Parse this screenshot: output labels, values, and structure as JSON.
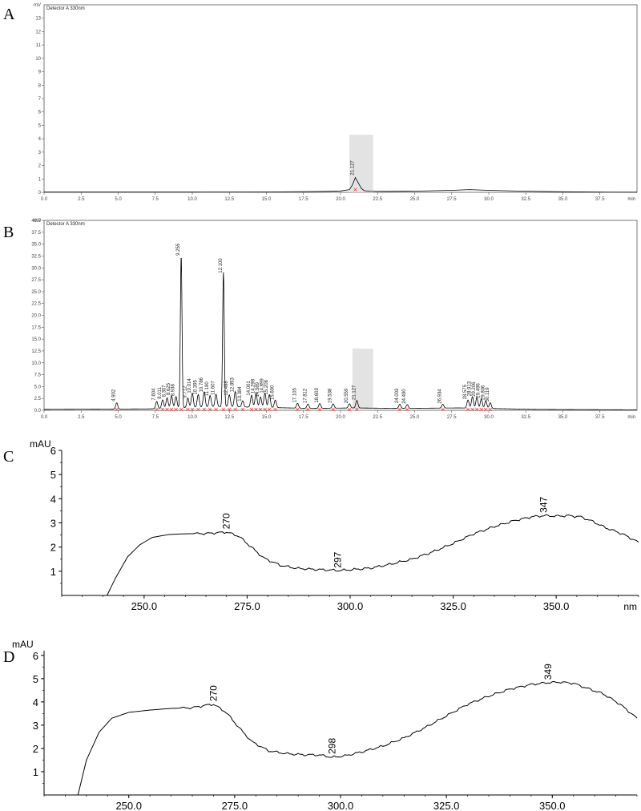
{
  "chart_data": [
    {
      "panel": "A",
      "type": "line",
      "detector_label": "Detector A 330nm",
      "ylabel": "mV",
      "xlabel": "min",
      "xlim": [
        0.0,
        40.0
      ],
      "ylim": [
        0,
        14
      ],
      "x_ticks": [
        "0.0",
        "2.5",
        "5.0",
        "7.5",
        "10.0",
        "12.5",
        "15.0",
        "17.5",
        "20.0",
        "22.5",
        "25.0",
        "27.5",
        "30.0",
        "32.5",
        "35.0",
        "37.5"
      ],
      "y_ticks": [
        "0",
        "1",
        "2",
        "3",
        "4",
        "5",
        "6",
        "7",
        "8",
        "9",
        "10",
        "11",
        "12",
        "13"
      ],
      "highlight": {
        "x_range": [
          20.6,
          22.2
        ],
        "y_max": 4.3
      },
      "x": [
        0,
        5,
        10,
        15,
        17.5,
        19,
        20,
        20.6,
        20.8,
        21.0,
        21.2,
        21.4,
        21.6,
        22.0,
        23,
        25,
        27.5,
        28.7,
        30,
        32.5,
        35,
        37.5,
        40
      ],
      "y": [
        0.02,
        0.02,
        0.02,
        0.03,
        0.05,
        0.07,
        0.1,
        0.2,
        0.55,
        1.1,
        0.7,
        0.3,
        0.12,
        0.08,
        0.07,
        0.09,
        0.15,
        0.2,
        0.15,
        0.08,
        0.04,
        0.02,
        0.01
      ],
      "peaks": [
        {
          "x": 21.0,
          "label": "21.127"
        }
      ]
    },
    {
      "panel": "B",
      "type": "line",
      "detector_label": "Detector A 330nm",
      "ylabel": "mV",
      "xlabel": "min",
      "xlim": [
        0.0,
        40.0
      ],
      "ylim": [
        0,
        40
      ],
      "x_ticks": [
        "0.0",
        "2.5",
        "5.0",
        "7.5",
        "10.0",
        "12.5",
        "15.0",
        "17.5",
        "20.0",
        "22.5",
        "25.0",
        "27.5",
        "30.0",
        "32.5",
        "35.0",
        "37.5"
      ],
      "y_ticks": [
        "0.0",
        "2.5",
        "5.0",
        "7.5",
        "10.0",
        "12.5",
        "15.0",
        "17.5",
        "20.0",
        "22.5",
        "25.0",
        "27.5",
        "30.0",
        "32.5",
        "35.0",
        "37.5",
        "40.0"
      ],
      "highlight": {
        "x_range": [
          20.8,
          22.2
        ],
        "y_max": 13.0
      },
      "baseline": [
        [
          0,
          0.2
        ],
        [
          4,
          0.25
        ],
        [
          7,
          0.3
        ],
        [
          9,
          0.5
        ],
        [
          12,
          0.8
        ],
        [
          15,
          0.6
        ],
        [
          18,
          0.4
        ],
        [
          21,
          0.5
        ],
        [
          24,
          0.4
        ],
        [
          28,
          0.5
        ],
        [
          30,
          0.4
        ],
        [
          33,
          0.2
        ],
        [
          36,
          0.15
        ],
        [
          40,
          0.1
        ]
      ],
      "peaks": [
        {
          "x": 4.9,
          "h": 1.3,
          "label": "4.902"
        },
        {
          "x": 7.6,
          "h": 1.5,
          "label": "7.604"
        },
        {
          "x": 8.0,
          "h": 1.8,
          "label": "8.011"
        },
        {
          "x": 8.3,
          "h": 2.2,
          "label": "8.307"
        },
        {
          "x": 8.6,
          "h": 2.6,
          "label": "8.625"
        },
        {
          "x": 8.9,
          "h": 2.4,
          "label": "8.938"
        },
        {
          "x": 9.25,
          "h": 32.0,
          "label": "9.255"
        },
        {
          "x": 9.7,
          "h": 2.0,
          "label": "9.712"
        },
        {
          "x": 10.0,
          "h": 3.0,
          "label": "10.014"
        },
        {
          "x": 10.4,
          "h": 2.7,
          "label": "10.395"
        },
        {
          "x": 10.8,
          "h": 3.2,
          "label": "10.786"
        },
        {
          "x": 11.2,
          "h": 2.4,
          "label": "11.180"
        },
        {
          "x": 11.6,
          "h": 2.6,
          "label": "11.607"
        },
        {
          "x": 12.1,
          "h": 28.3,
          "label": "12.100"
        },
        {
          "x": 12.5,
          "h": 2.5,
          "label": "12.498"
        },
        {
          "x": 12.9,
          "h": 3.2,
          "label": "12.893"
        },
        {
          "x": 13.4,
          "h": 1.3,
          "label": "13.384"
        },
        {
          "x": 14.0,
          "h": 2.5,
          "label": "14.001"
        },
        {
          "x": 14.3,
          "h": 2.9,
          "label": "14.298"
        },
        {
          "x": 14.6,
          "h": 2.2,
          "label": "14.589"
        },
        {
          "x": 14.9,
          "h": 3.0,
          "label": "14.899"
        },
        {
          "x": 15.2,
          "h": 2.7,
          "label": "15.208"
        },
        {
          "x": 15.6,
          "h": 1.6,
          "label": "15.600"
        },
        {
          "x": 17.1,
          "h": 1.0,
          "label": "17.105"
        },
        {
          "x": 17.8,
          "h": 0.9,
          "label": "17.812"
        },
        {
          "x": 18.6,
          "h": 1.0,
          "label": "18.603"
        },
        {
          "x": 19.5,
          "h": 0.9,
          "label": "19.538"
        },
        {
          "x": 20.6,
          "h": 0.9,
          "label": "20.559"
        },
        {
          "x": 21.1,
          "h": 1.6,
          "label": "21.127"
        },
        {
          "x": 24.0,
          "h": 0.9,
          "label": "24.003"
        },
        {
          "x": 24.5,
          "h": 0.8,
          "label": "24.490"
        },
        {
          "x": 26.9,
          "h": 0.8,
          "label": "26.934"
        },
        {
          "x": 28.6,
          "h": 1.7,
          "label": "28.575"
        },
        {
          "x": 28.9,
          "h": 2.4,
          "label": "28.913"
        },
        {
          "x": 29.2,
          "h": 2.3,
          "label": "29.206"
        },
        {
          "x": 29.5,
          "h": 2.0,
          "label": "29.496"
        },
        {
          "x": 29.8,
          "h": 1.6,
          "label": "29.806"
        },
        {
          "x": 30.1,
          "h": 1.2,
          "label": "30.119"
        }
      ]
    },
    {
      "panel": "C",
      "type": "line",
      "ylabel": "mAU",
      "xlabel": "nm",
      "xlim": [
        230.0,
        370.0
      ],
      "ylim": [
        0,
        6
      ],
      "x_ticks": [
        "250.0",
        "275.0",
        "300.0",
        "325.0",
        "350.0"
      ],
      "y_ticks": [
        "1",
        "2",
        "3",
        "4",
        "5",
        "6"
      ],
      "x": [
        241,
        243,
        246,
        249,
        252,
        256,
        260,
        265,
        270,
        273,
        276,
        279,
        283,
        287,
        291,
        295,
        297,
        300,
        305,
        310,
        315,
        320,
        325,
        330,
        335,
        340,
        344,
        347,
        350,
        353,
        356,
        359,
        362,
        366,
        370
      ],
      "y": [
        0.0,
        0.7,
        1.6,
        2.1,
        2.4,
        2.52,
        2.55,
        2.56,
        2.62,
        2.45,
        2.0,
        1.55,
        1.25,
        1.12,
        1.08,
        1.05,
        1.03,
        1.06,
        1.13,
        1.3,
        1.5,
        1.8,
        2.15,
        2.55,
        2.85,
        3.1,
        3.25,
        3.3,
        3.28,
        3.3,
        3.25,
        3.05,
        2.8,
        2.55,
        2.2
      ],
      "annotations": [
        {
          "x": 270,
          "label": "270"
        },
        {
          "x": 297,
          "label": "297"
        },
        {
          "x": 347,
          "label": "347"
        }
      ]
    },
    {
      "panel": "D",
      "type": "line",
      "ylabel": "mAU",
      "xlabel": "",
      "xlim": [
        230.0,
        370.0
      ],
      "ylim": [
        0,
        6.2
      ],
      "x_ticks": [
        "250.0",
        "275.0",
        "300.0",
        "325.0",
        "350.0"
      ],
      "y_ticks": [
        "1",
        "2",
        "3",
        "4",
        "5",
        "6"
      ],
      "x": [
        238,
        240,
        243,
        246,
        250,
        255,
        260,
        265,
        268,
        270,
        273,
        276,
        279,
        283,
        287,
        291,
        295,
        298,
        301,
        305,
        310,
        315,
        320,
        325,
        330,
        335,
        340,
        345,
        349,
        352,
        355,
        358,
        362,
        366,
        370
      ],
      "y": [
        0.0,
        1.5,
        2.7,
        3.3,
        3.55,
        3.65,
        3.72,
        3.75,
        3.85,
        3.9,
        3.55,
        2.9,
        2.3,
        1.9,
        1.78,
        1.73,
        1.72,
        1.62,
        1.68,
        1.85,
        2.1,
        2.45,
        2.9,
        3.4,
        3.9,
        4.25,
        4.55,
        4.75,
        4.83,
        4.85,
        4.8,
        4.6,
        4.35,
        3.9,
        3.3
      ],
      "annotations": [
        {
          "x": 270,
          "label": "270"
        },
        {
          "x": 298,
          "label": "298"
        },
        {
          "x": 349,
          "label": "349"
        }
      ]
    }
  ]
}
